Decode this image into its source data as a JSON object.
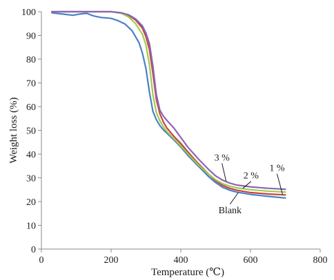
{
  "chart_data": {
    "type": "line",
    "title": "",
    "xlabel": "Temperature (℃)",
    "ylabel": "Weight loss (%)",
    "xlim": [
      0,
      800
    ],
    "ylim": [
      0,
      100
    ],
    "xticks": [
      0,
      200,
      400,
      600,
      800
    ],
    "yticks": [
      0,
      10,
      20,
      30,
      40,
      50,
      60,
      70,
      80,
      90,
      100
    ],
    "grid": false,
    "legend": "none",
    "series": [
      {
        "name": "Blank",
        "color": "#4a7fc8",
        "x": [
          30,
          60,
          90,
          110,
          130,
          150,
          170,
          200,
          220,
          240,
          260,
          280,
          290,
          300,
          310,
          320,
          330,
          340,
          350,
          360,
          380,
          400,
          420,
          450,
          480,
          500,
          520,
          540,
          560,
          600,
          650,
          700
        ],
        "y": [
          99.5,
          99.0,
          98.5,
          99.0,
          99.3,
          98.2,
          97.6,
          97.2,
          96.2,
          94.8,
          92.0,
          87.0,
          82.5,
          76.0,
          66.0,
          58.0,
          54.5,
          52.0,
          50.2,
          48.8,
          46.0,
          43.0,
          39.5,
          35.0,
          30.5,
          28.0,
          26.0,
          24.8,
          24.0,
          23.0,
          22.2,
          21.5
        ]
      },
      {
        "name": "1 %",
        "color": "#c4433e",
        "x": [
          30,
          60,
          100,
          150,
          200,
          230,
          250,
          270,
          290,
          300,
          310,
          320,
          330,
          340,
          350,
          360,
          380,
          400,
          420,
          450,
          480,
          500,
          520,
          540,
          560,
          600,
          650,
          700
        ],
        "y": [
          100,
          100,
          100,
          100,
          100,
          99.5,
          98.5,
          96.5,
          93.0,
          89.5,
          84.0,
          74.0,
          63.0,
          57.0,
          53.5,
          51.0,
          47.5,
          44.5,
          41.0,
          36.0,
          31.5,
          28.8,
          26.8,
          25.6,
          24.8,
          23.8,
          23.2,
          22.8
        ]
      },
      {
        "name": "2 %",
        "color": "#9fcc48",
        "x": [
          30,
          60,
          100,
          150,
          200,
          230,
          250,
          270,
          290,
          300,
          310,
          320,
          330,
          340,
          350,
          360,
          380,
          400,
          420,
          450,
          480,
          500,
          520,
          540,
          560,
          600,
          650,
          700
        ],
        "y": [
          100,
          100,
          100,
          100,
          100,
          99.3,
          97.8,
          95.0,
          90.5,
          86.0,
          77.5,
          65.0,
          57.5,
          54.0,
          51.5,
          49.5,
          46.5,
          43.5,
          40.2,
          35.5,
          31.5,
          29.2,
          27.5,
          26.5,
          25.8,
          25.0,
          24.4,
          24.0
        ]
      },
      {
        "name": "3 %",
        "color": "#8c64b8",
        "x": [
          30,
          60,
          100,
          150,
          200,
          230,
          250,
          270,
          290,
          300,
          310,
          320,
          330,
          340,
          350,
          360,
          380,
          400,
          420,
          450,
          480,
          500,
          520,
          540,
          560,
          600,
          650,
          700
        ],
        "y": [
          100,
          100,
          100,
          100,
          100,
          99.5,
          98.7,
          97.0,
          94.0,
          91.0,
          86.5,
          77.0,
          65.0,
          58.5,
          56.0,
          54.2,
          51.0,
          47.0,
          43.0,
          38.0,
          33.5,
          30.8,
          29.0,
          27.8,
          27.0,
          26.2,
          25.6,
          25.2
        ]
      }
    ],
    "annotations": [
      {
        "text": "3 %",
        "series": "3 %",
        "x": 530,
        "y": 28.6
      },
      {
        "text": "2 %",
        "series": "2 %",
        "x": 578,
        "y": 25.6
      },
      {
        "text": "1 %",
        "series": "1 %",
        "x": 692,
        "y": 23.0
      },
      {
        "text": "Blank",
        "series": "Blank",
        "x": 565,
        "y": 23.8
      }
    ]
  }
}
